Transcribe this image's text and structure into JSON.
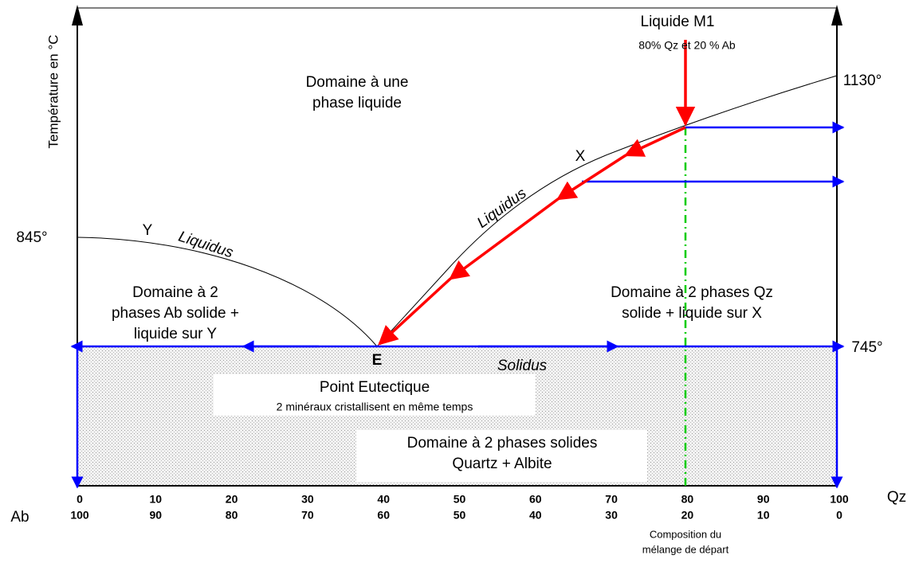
{
  "y_axis_label": "Température en °C",
  "x_axis": {
    "left_label": "Ab",
    "right_label": "Qz",
    "qz_ticks": [
      "0",
      "10",
      "20",
      "30",
      "40",
      "50",
      "60",
      "70",
      "80",
      "90",
      "100"
    ],
    "ab_ticks": [
      "100",
      "90",
      "80",
      "70",
      "60",
      "50",
      "40",
      "30",
      "20",
      "10",
      "0"
    ],
    "note": [
      "Composition du",
      "mélange de départ"
    ]
  },
  "temperatures": {
    "left": "845°",
    "right": "1130°",
    "solidus": "745°"
  },
  "labels": {
    "liquid_m1": "Liquide M1",
    "liquid_m1_comp": "80% Qz et 20 % Ab",
    "liquid_domain": [
      "Domaine à une",
      "phase liquide"
    ],
    "point_x": "X",
    "point_y": "Y",
    "point_e": "E",
    "liquidus_right": "Liquidus",
    "liquidus_left": "Liquidus",
    "solidus": "Solidus",
    "ab_domain": [
      "Domaine à 2",
      "phases Ab solide +",
      "liquide sur Y"
    ],
    "qz_domain": [
      "Domaine à 2 phases Qz",
      "solide + liquide sur X"
    ],
    "eutectic": [
      "Point Eutectique",
      "2 minéraux cristallisent en même temps"
    ],
    "solid_domain": [
      "Domaine à 2 phases solides",
      "Quartz + Albite"
    ]
  }
}
